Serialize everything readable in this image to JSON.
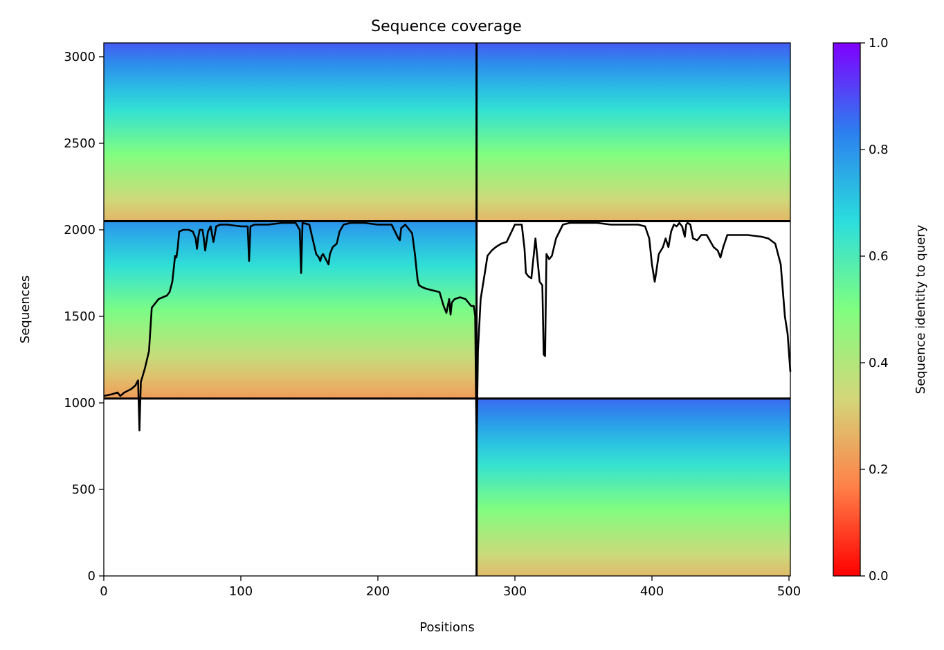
{
  "chart_data": {
    "type": "heatmap",
    "title": "Sequence coverage",
    "xlabel": "Positions",
    "ylabel": "Sequences",
    "xlim": [
      0,
      501
    ],
    "ylim": [
      0,
      3080
    ],
    "xticks": [
      0,
      100,
      200,
      300,
      400,
      500
    ],
    "yticks": [
      0,
      500,
      1000,
      1500,
      2000,
      2500,
      3000
    ],
    "grid": false,
    "colorbar": {
      "label": "Sequence identity to query",
      "range": [
        0,
        1
      ],
      "ticks": [
        "0.0",
        "0.2",
        "0.4",
        "0.6",
        "0.8",
        "1.0"
      ],
      "colormap": "rainbow",
      "colors": [
        "#ff0000",
        "#ff8048",
        "#d3d77a",
        "#80fe80",
        "#2adddd",
        "#2c7fef",
        "#8000ff"
      ]
    },
    "divider_lines": {
      "vertical_x": 272,
      "horizontal_y": [
        1025,
        2050
      ]
    },
    "blocks": [
      {
        "name": "top-left",
        "x": [
          0,
          272
        ],
        "y": [
          2050,
          3080
        ],
        "identity_bottom": 0.27,
        "identity_top": 0.88
      },
      {
        "name": "top-right",
        "x": [
          272,
          501
        ],
        "y": [
          2050,
          3080
        ],
        "identity_bottom": 0.27,
        "identity_top": 0.88
      },
      {
        "name": "middle-left",
        "x": [
          0,
          272
        ],
        "y": [
          1025,
          2050
        ],
        "identity_bottom": 0.22,
        "identity_top": 0.8
      },
      {
        "name": "bottom-right",
        "x": [
          272,
          501
        ],
        "y": [
          0,
          1025
        ],
        "identity_bottom": 0.28,
        "identity_top": 0.86
      }
    ],
    "coverage_line": {
      "x": [
        0,
        6,
        10,
        12,
        15,
        20,
        23,
        25,
        26,
        27,
        30,
        33,
        35,
        38,
        40,
        43,
        46,
        48,
        50,
        52,
        53,
        54,
        55,
        58,
        62,
        65,
        67,
        68,
        69,
        70,
        72,
        73,
        74,
        76,
        78,
        80,
        82,
        85,
        90,
        100,
        105,
        106,
        107,
        110,
        120,
        130,
        140,
        143,
        144,
        145,
        150,
        152,
        155,
        157,
        158,
        159,
        160,
        162,
        164,
        165,
        167,
        170,
        172,
        175,
        180,
        190,
        200,
        210,
        215,
        216,
        217,
        220,
        225,
        227,
        229,
        230,
        232,
        235,
        240,
        245,
        248,
        250,
        252,
        253,
        254,
        256,
        260,
        264,
        268,
        270,
        271,
        272,
        273,
        275,
        278,
        280,
        283,
        286,
        290,
        294,
        300,
        305,
        307,
        308,
        310,
        312,
        313,
        315,
        318,
        320,
        321,
        322,
        323,
        325,
        327,
        330,
        335,
        340,
        350,
        360,
        370,
        380,
        390,
        395,
        398,
        400,
        402,
        403,
        405,
        408,
        410,
        412,
        414,
        416,
        418,
        420,
        422,
        424,
        425,
        426,
        428,
        430,
        433,
        436,
        440,
        445,
        448,
        450,
        452,
        455,
        460,
        470,
        480,
        485,
        490,
        494,
        497,
        499,
        501
      ],
      "y": [
        1040,
        1050,
        1060,
        1040,
        1060,
        1080,
        1100,
        1130,
        840,
        1120,
        1200,
        1300,
        1550,
        1580,
        1600,
        1610,
        1620,
        1640,
        1700,
        1850,
        1840,
        1900,
        1990,
        2000,
        2000,
        1990,
        1950,
        1890,
        1960,
        2000,
        2000,
        1950,
        1880,
        1990,
        2020,
        1930,
        2020,
        2030,
        2030,
        2020,
        2020,
        1820,
        2020,
        2030,
        2030,
        2040,
        2040,
        2000,
        1750,
        2040,
        2030,
        1960,
        1860,
        1840,
        1820,
        1850,
        1860,
        1830,
        1800,
        1860,
        1900,
        1920,
        1990,
        2030,
        2040,
        2040,
        2030,
        2030,
        1950,
        1940,
        2010,
        2030,
        1980,
        1860,
        1710,
        1680,
        1670,
        1660,
        1650,
        1640,
        1560,
        1520,
        1600,
        1510,
        1580,
        1600,
        1610,
        1600,
        1560,
        1560,
        1500,
        740,
        1300,
        1600,
        1750,
        1850,
        1880,
        1900,
        1920,
        1930,
        2030,
        2030,
        1890,
        1750,
        1730,
        1720,
        1800,
        1950,
        1700,
        1680,
        1280,
        1270,
        1860,
        1830,
        1850,
        1950,
        2030,
        2040,
        2040,
        2040,
        2030,
        2030,
        2030,
        2020,
        1950,
        1800,
        1700,
        1750,
        1860,
        1900,
        1950,
        1900,
        1990,
        2030,
        2020,
        2040,
        2020,
        1960,
        2030,
        2040,
        2030,
        1950,
        1940,
        1970,
        1970,
        1900,
        1880,
        1840,
        1900,
        1970,
        1970,
        1970,
        1960,
        1950,
        1920,
        1800,
        1500,
        1400,
        1180
      ]
    }
  }
}
